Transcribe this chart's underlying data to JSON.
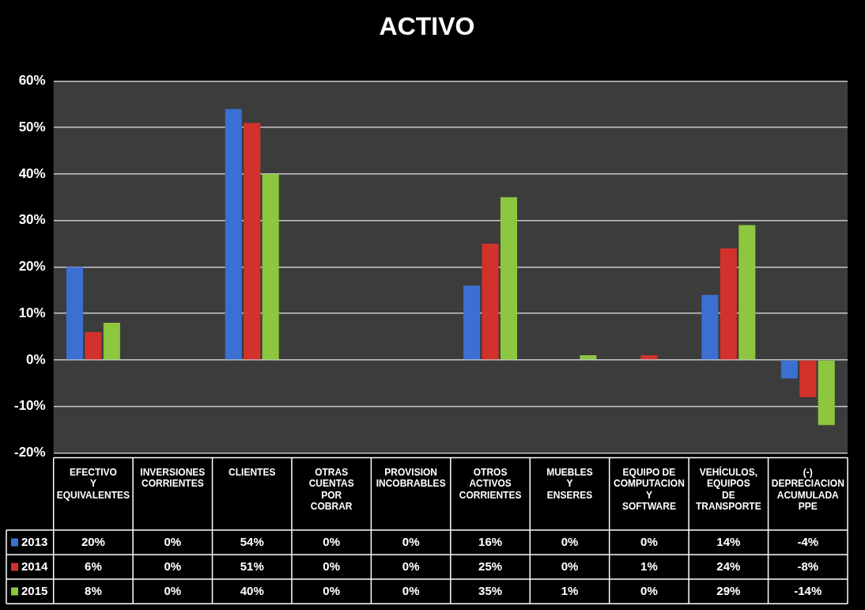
{
  "chart_data": {
    "type": "bar",
    "title": "ACTIVO",
    "categories": [
      "EFECTIVO Y EQUIVALENTES",
      "INVERSIONES CORRIENTES",
      "CLIENTES",
      "OTRAS CUENTAS POR COBRAR",
      "PROVISION INCOBRABLES",
      "OTROS ACTIVOS CORRIENTES",
      "MUEBLES Y ENSERES",
      "EQUIPO DE COMPUTACION Y SOFTWARE",
      "VEHÍCULOS, EQUIPOS DE TRANSPORTE",
      "(-) DEPRECIACION ACUMULADA PPE"
    ],
    "series": [
      {
        "name": "2013",
        "color": "#3b6fd1",
        "values": [
          20,
          0,
          54,
          0,
          0,
          16,
          0,
          0,
          14,
          -4
        ],
        "value_labels": [
          "20%",
          "0%",
          "54%",
          "0%",
          "0%",
          "16%",
          "0%",
          "0%",
          "14%",
          "-4%"
        ]
      },
      {
        "name": "2014",
        "color": "#d2312c",
        "values": [
          6,
          0,
          51,
          0,
          0,
          25,
          0,
          1,
          24,
          -8
        ],
        "value_labels": [
          "6%",
          "0%",
          "51%",
          "0%",
          "0%",
          "25%",
          "0%",
          "1%",
          "24%",
          "-8%"
        ]
      },
      {
        "name": "2015",
        "color": "#8dc63f",
        "values": [
          8,
          0,
          40,
          0,
          0,
          35,
          1,
          0,
          29,
          -14
        ],
        "value_labels": [
          "8%",
          "0%",
          "40%",
          "0%",
          "0%",
          "35%",
          "1%",
          "0%",
          "29%",
          "-14%"
        ]
      }
    ],
    "ylim": [
      -20,
      60
    ],
    "yticks": [
      {
        "value": -20,
        "label": "-20%"
      },
      {
        "value": -10,
        "label": "-10%"
      },
      {
        "value": 0,
        "label": "0%"
      },
      {
        "value": 10,
        "label": "10%"
      },
      {
        "value": 20,
        "label": "20%"
      },
      {
        "value": 30,
        "label": "30%"
      },
      {
        "value": 40,
        "label": "40%"
      },
      {
        "value": 50,
        "label": "50%"
      },
      {
        "value": 60,
        "label": "60%"
      }
    ],
    "grid": "y",
    "legend": "bottom"
  }
}
